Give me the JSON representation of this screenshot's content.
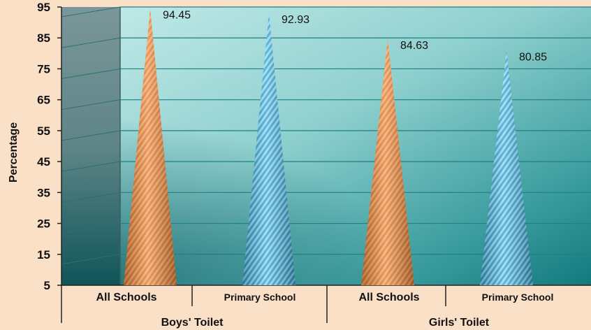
{
  "chart_data": {
    "type": "bar",
    "bar_shape": "cone",
    "ylabel": "Percentage",
    "ylim": [
      5,
      95
    ],
    "yticks": [
      5,
      15,
      25,
      35,
      45,
      55,
      65,
      75,
      85,
      95
    ],
    "grid": true,
    "groups": [
      {
        "label": "Boys' Toilet",
        "categories": [
          "All Schools",
          "Primary School"
        ]
      },
      {
        "label": "Girls' Toilet",
        "categories": [
          "All Schools",
          "Primary School"
        ]
      }
    ],
    "bars": [
      {
        "group": "Boys' Toilet",
        "category": "All Schools",
        "value": 94.45,
        "label": "94.45",
        "color": "#f08a3c"
      },
      {
        "group": "Boys' Toilet",
        "category": "Primary School",
        "value": 92.93,
        "label": "92.93",
        "color": "#3fb4e0"
      },
      {
        "group": "Girls' Toilet",
        "category": "All Schools",
        "value": 84.63,
        "label": "84.63",
        "color": "#f08a3c"
      },
      {
        "group": "Girls' Toilet",
        "category": "Primary School",
        "value": 80.85,
        "label": "80.85",
        "color": "#3fb4e0"
      }
    ],
    "colors": {
      "page_bg": "#fbe0c8",
      "plot_light": "#bfe8e6",
      "plot_dark": "#0b6b72",
      "wall": "#6e8d8f"
    }
  }
}
